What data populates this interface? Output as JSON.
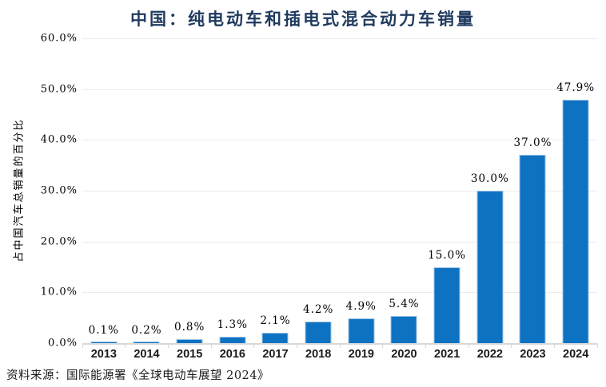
{
  "title": "中国：纯电动车和插电式混合动力车销量",
  "source_note": "资料来源：国际能源署《全球电动车展望 2024》",
  "chart_data": {
    "type": "bar",
    "title": "中国：纯电动车和插电式混合动力车销量",
    "xlabel": "",
    "ylabel": "占中国汽车总销量的百分比",
    "categories": [
      "2013",
      "2014",
      "2015",
      "2016",
      "2017",
      "2018",
      "2019",
      "2020",
      "2021",
      "2022",
      "2023",
      "2024"
    ],
    "values": [
      0.1,
      0.2,
      0.8,
      1.3,
      2.1,
      4.2,
      4.9,
      5.4,
      15.0,
      30.0,
      37.0,
      47.9
    ],
    "value_labels": [
      "0.1%",
      "0.2%",
      "0.8%",
      "1.3%",
      "2.1%",
      "4.2%",
      "4.9%",
      "5.4%",
      "15.0%",
      "30.0%",
      "37.0%",
      "47.9%"
    ],
    "ylim": [
      0,
      60
    ],
    "y_ticks": [
      {
        "value": 0,
        "label": "0.0%"
      },
      {
        "value": 10,
        "label": "10.0%"
      },
      {
        "value": 20,
        "label": "20.0%"
      },
      {
        "value": 30,
        "label": "30.0%"
      },
      {
        "value": 40,
        "label": "40.0%"
      },
      {
        "value": 50,
        "label": "50.0%"
      },
      {
        "value": 60,
        "label": "60.0%"
      }
    ],
    "grid": true,
    "legend": "none",
    "colors": {
      "bar_fill": "#0e72c3",
      "bar_border": "#9dc3e6",
      "title_text": "#1f3a5f",
      "gridline": "#ebebeb",
      "axis_line": "#d9d9d9",
      "tick_text": "#000000",
      "year_text": "#1a1a1a"
    }
  }
}
